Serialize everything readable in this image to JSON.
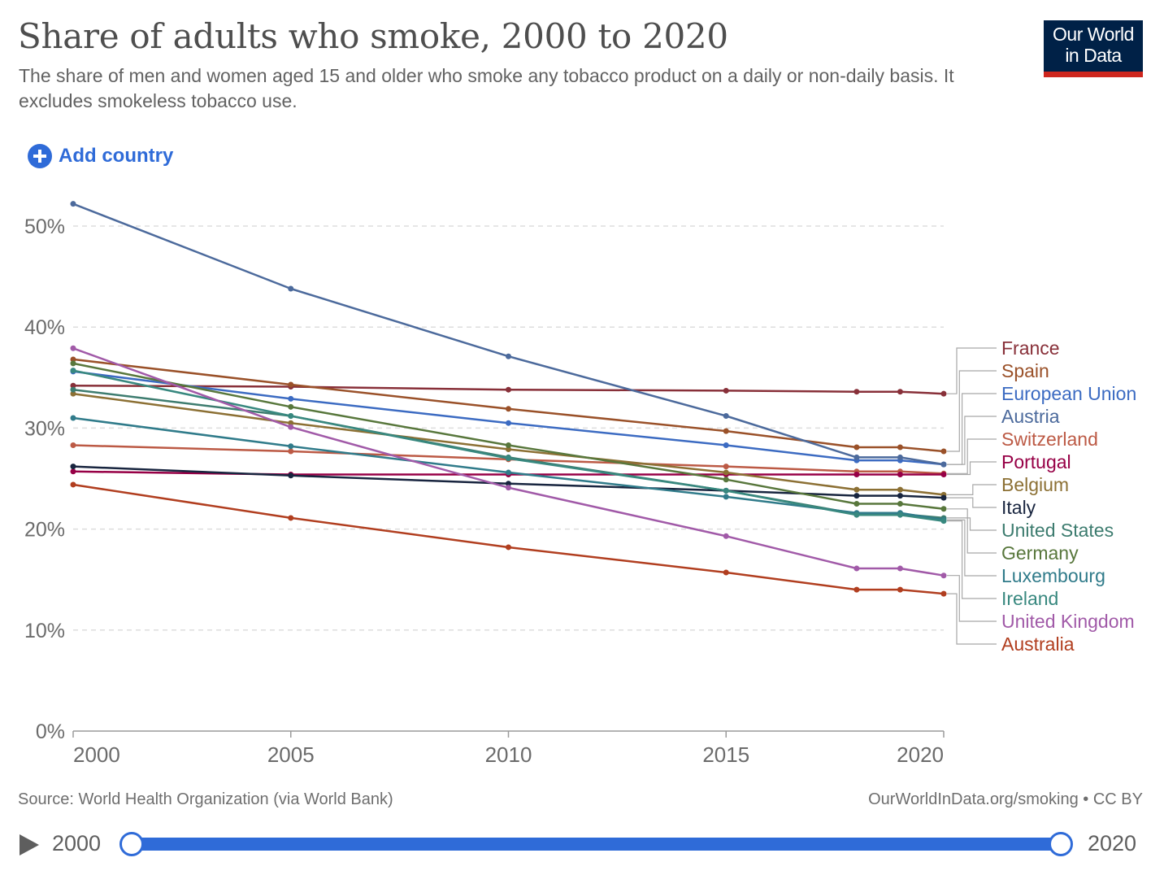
{
  "title": "Share of adults who smoke, 2000 to 2020",
  "subtitle": "The share of men and women aged 15 and older who smoke any tobacco product on a daily or non-daily basis. It excludes smokeless tobacco use.",
  "logo": {
    "line1": "Our World",
    "line2": "in Data"
  },
  "add_country_label": "Add country",
  "footer": {
    "source": "Source: World Health Organization (via World Bank)",
    "link": "OurWorldInData.org/smoking • CC BY"
  },
  "timeline": {
    "start": "2000",
    "end": "2020"
  },
  "chart_data": {
    "type": "line",
    "title": "Share of adults who smoke, 2000 to 2020",
    "x": [
      2000,
      2005,
      2010,
      2015,
      2018,
      2019,
      2020
    ],
    "xticks": [
      2000,
      2005,
      2010,
      2015,
      2020
    ],
    "yticks": [
      0,
      10,
      20,
      30,
      40,
      50
    ],
    "ytick_labels": [
      "0%",
      "10%",
      "20%",
      "30%",
      "40%",
      "50%"
    ],
    "ylim": [
      0,
      50
    ],
    "grid": true,
    "legend_position": "right",
    "series": [
      {
        "name": "France",
        "color": "#883039",
        "values": [
          34.2,
          34.1,
          33.8,
          33.7,
          33.6,
          33.6,
          33.4
        ]
      },
      {
        "name": "Spain",
        "color": "#9a5129",
        "values": [
          36.8,
          34.3,
          31.9,
          29.7,
          28.1,
          28.1,
          27.7
        ]
      },
      {
        "name": "European Union",
        "color": "#3c6bc2",
        "values": [
          35.6,
          32.9,
          30.5,
          28.3,
          26.8,
          26.8,
          26.4
        ]
      },
      {
        "name": "Austria",
        "color": "#4c6a9c",
        "values": [
          52.2,
          43.8,
          37.1,
          31.2,
          27.1,
          27.1,
          26.4
        ]
      },
      {
        "name": "Switzerland",
        "color": "#bc5a45",
        "values": [
          28.3,
          27.7,
          26.9,
          26.2,
          25.7,
          25.7,
          25.5
        ]
      },
      {
        "name": "Portugal",
        "color": "#970046",
        "values": [
          25.7,
          25.4,
          25.4,
          25.4,
          25.4,
          25.4,
          25.4
        ]
      },
      {
        "name": "Belgium",
        "color": "#8c7034",
        "values": [
          33.4,
          30.5,
          27.9,
          25.6,
          23.9,
          23.9,
          23.4
        ]
      },
      {
        "name": "Italy",
        "color": "#18253f",
        "values": [
          26.2,
          25.3,
          24.5,
          23.8,
          23.3,
          23.3,
          23.1
        ]
      },
      {
        "name": "United States",
        "color": "#3d7c6f",
        "values": [
          33.8,
          31.2,
          27.1,
          23.8,
          21.5,
          21.5,
          21.1
        ]
      },
      {
        "name": "Germany",
        "color": "#58773c",
        "values": [
          36.4,
          32.1,
          28.3,
          24.9,
          22.5,
          22.5,
          22.0
        ]
      },
      {
        "name": "Luxembourg",
        "color": "#307b8a",
        "values": [
          31.0,
          28.2,
          25.6,
          23.2,
          21.6,
          21.6,
          20.9
        ]
      },
      {
        "name": "Ireland",
        "color": "#38887f",
        "values": [
          35.7,
          31.2,
          27.0,
          23.8,
          21.4,
          21.4,
          20.8
        ]
      },
      {
        "name": "United Kingdom",
        "color": "#a15aa8",
        "values": [
          37.9,
          30.1,
          24.1,
          19.3,
          16.1,
          16.1,
          15.4
        ]
      },
      {
        "name": "Australia",
        "color": "#b13e1f",
        "values": [
          24.4,
          21.1,
          18.2,
          15.7,
          14.0,
          14.0,
          13.6
        ]
      }
    ]
  }
}
